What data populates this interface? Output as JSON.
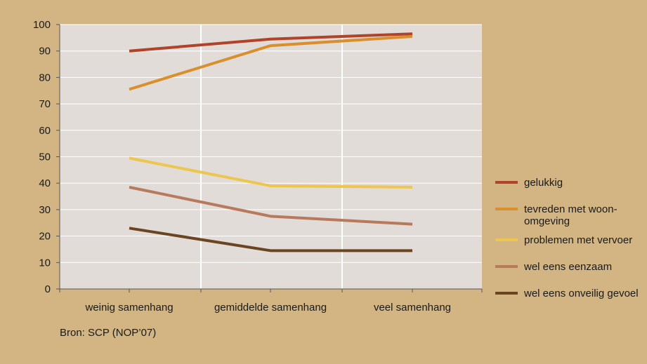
{
  "chart_data": {
    "type": "line",
    "title": "",
    "xlabel": "",
    "ylabel": "",
    "categories": [
      "weinig samenhang",
      "gemiddelde samenhang",
      "veel samenhang"
    ],
    "ylim": [
      0,
      100
    ],
    "yticks": [
      0,
      10,
      20,
      30,
      40,
      50,
      60,
      70,
      80,
      90,
      100
    ],
    "grid": true,
    "legend_position": "right",
    "series": [
      {
        "name": "gelukkig",
        "color": "#b0432a",
        "values": [
          90,
          94.5,
          96.5
        ]
      },
      {
        "name": "tevreden met woon-omgeving",
        "name_lines": [
          "tevreden met woon-",
          "omgeving"
        ],
        "color": "#d98f2b",
        "values": [
          75.5,
          92,
          95.5
        ]
      },
      {
        "name": "problemen met vervoer",
        "color": "#ecc64f",
        "values": [
          49.5,
          39,
          38.5
        ]
      },
      {
        "name": "wel eens eenzaam",
        "color": "#b87a5c",
        "values": [
          38.5,
          27.5,
          24.5
        ]
      },
      {
        "name": "wel eens onveilig gevoel",
        "color": "#6b4420",
        "values": [
          23,
          14.5,
          14.5
        ]
      }
    ]
  },
  "source_note": "Bron: SCP (NOP’07)"
}
